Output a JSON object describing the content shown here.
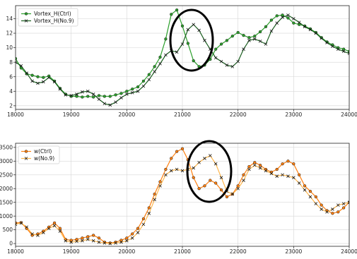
{
  "chart_data": [
    {
      "type": "line",
      "title": "",
      "xlabel": "",
      "ylabel": "",
      "xlim": [
        18000,
        24000
      ],
      "ylim": [
        1.5,
        15.8
      ],
      "xticks": [
        18000,
        19000,
        20000,
        21000,
        22000,
        23000,
        24000
      ],
      "yticks": [
        2,
        4,
        6,
        8,
        10,
        12,
        14
      ],
      "grid": true,
      "legend_position": "top-left",
      "annotation": "ellipse around x 21000-21500",
      "series": [
        {
          "name": "Vortex_H(Ctrl)",
          "color": "#2ca02c",
          "marker": "circle",
          "x": [
            18000,
            18100,
            18200,
            18300,
            18400,
            18500,
            18600,
            18700,
            18800,
            18900,
            19000,
            19100,
            19200,
            19300,
            19400,
            19500,
            19600,
            19700,
            19800,
            19900,
            20000,
            20100,
            20200,
            20300,
            20400,
            20500,
            20600,
            20700,
            20800,
            20900,
            21000,
            21100,
            21200,
            21300,
            21400,
            21500,
            21600,
            21700,
            21800,
            21900,
            22000,
            22100,
            22200,
            22300,
            22400,
            22500,
            22600,
            22700,
            22800,
            22900,
            23000,
            23100,
            23200,
            23300,
            23400,
            23500,
            23600,
            23700,
            23800,
            23900,
            24000
          ],
          "y": [
            8.5,
            7.2,
            6.4,
            6.2,
            6.0,
            5.9,
            6.1,
            5.4,
            4.4,
            3.6,
            3.3,
            3.3,
            3.2,
            3.3,
            3.2,
            3.4,
            3.3,
            3.3,
            3.5,
            3.7,
            4.0,
            4.3,
            4.6,
            5.4,
            6.3,
            7.4,
            8.7,
            11.2,
            14.6,
            15.2,
            13.0,
            10.6,
            8.2,
            7.4,
            7.6,
            8.4,
            9.8,
            10.5,
            11.0,
            11.6,
            12.1,
            11.7,
            11.4,
            11.6,
            12.2,
            12.9,
            13.8,
            14.4,
            14.5,
            14.1,
            13.4,
            13.2,
            13.0,
            12.6,
            12.1,
            11.4,
            10.8,
            10.4,
            10.0,
            9.8,
            9.5
          ]
        },
        {
          "name": "Vortex_H(No.9)",
          "color": "#1b5e20",
          "marker": "cross",
          "x": [
            18000,
            18100,
            18200,
            18300,
            18400,
            18500,
            18600,
            18700,
            18800,
            18900,
            19000,
            19100,
            19200,
            19300,
            19400,
            19500,
            19600,
            19700,
            19800,
            19900,
            20000,
            20100,
            20200,
            20300,
            20400,
            20500,
            20600,
            20700,
            20800,
            20900,
            21000,
            21100,
            21200,
            21300,
            21400,
            21500,
            21600,
            21700,
            21800,
            21900,
            22000,
            22100,
            22200,
            22300,
            22400,
            22500,
            22600,
            22700,
            22800,
            22900,
            23000,
            23100,
            23200,
            23300,
            23400,
            23500,
            23600,
            23700,
            23800,
            23900,
            24000
          ],
          "y": [
            8.0,
            7.5,
            6.5,
            5.4,
            5.1,
            5.3,
            5.9,
            5.3,
            4.3,
            3.5,
            3.4,
            3.6,
            3.9,
            4.0,
            3.6,
            2.9,
            2.3,
            2.1,
            2.5,
            3.1,
            3.6,
            3.8,
            4.0,
            4.7,
            5.6,
            6.7,
            7.8,
            9.0,
            9.6,
            9.4,
            10.5,
            12.5,
            13.2,
            12.4,
            11.0,
            9.8,
            8.6,
            8.1,
            7.6,
            7.4,
            8.1,
            9.8,
            11.0,
            11.2,
            10.9,
            10.5,
            12.3,
            13.4,
            14.2,
            14.5,
            14.0,
            13.5,
            12.9,
            12.5,
            12.0,
            11.3,
            10.7,
            10.2,
            9.8,
            9.5,
            9.2
          ]
        }
      ]
    },
    {
      "type": "line",
      "title": "",
      "xlabel": "",
      "ylabel": "",
      "xlim": [
        18000,
        24000
      ],
      "ylim": [
        -100,
        3650
      ],
      "xticks": [
        18000,
        19000,
        20000,
        21000,
        22000,
        23000,
        24000
      ],
      "yticks": [
        0,
        500,
        1000,
        1500,
        2000,
        2500,
        3000,
        3500
      ],
      "ytick_labels": [
        "0",
        "500",
        "1000",
        "1500",
        "2000",
        "2500",
        "3000",
        "3500"
      ],
      "grid": true,
      "legend_position": "top-left",
      "annotation": "ellipse around x 21300-21900",
      "series": [
        {
          "name": "w(Ctrl)",
          "color": "#ff7f0e",
          "marker": "circle",
          "x": [
            18000,
            18100,
            18200,
            18300,
            18400,
            18500,
            18600,
            18700,
            18800,
            18900,
            19000,
            19100,
            19200,
            19300,
            19400,
            19500,
            19600,
            19700,
            19800,
            19900,
            20000,
            20100,
            20200,
            20300,
            20400,
            20500,
            20600,
            20700,
            20800,
            20900,
            21000,
            21100,
            21200,
            21300,
            21400,
            21500,
            21600,
            21700,
            21800,
            21900,
            22000,
            22100,
            22200,
            22300,
            22400,
            22500,
            22600,
            22700,
            22800,
            22900,
            23000,
            23100,
            23200,
            23300,
            23400,
            23500,
            23600,
            23700,
            23800,
            23900,
            24000
          ],
          "y": [
            750,
            760,
            550,
            300,
            350,
            450,
            600,
            750,
            550,
            150,
            120,
            150,
            200,
            250,
            300,
            200,
            50,
            20,
            50,
            120,
            200,
            350,
            550,
            900,
            1300,
            1800,
            2250,
            2700,
            3100,
            3350,
            3450,
            3050,
            2400,
            2000,
            2100,
            2300,
            2200,
            1950,
            1700,
            1800,
            2100,
            2500,
            2800,
            2950,
            2850,
            2700,
            2600,
            2700,
            2900,
            3000,
            2900,
            2500,
            2100,
            1900,
            1700,
            1400,
            1200,
            1100,
            1150,
            1300,
            1500
          ]
        },
        {
          "name": "w(No.9)",
          "color": "#ffb74d",
          "marker": "cross",
          "x": [
            18000,
            18100,
            18200,
            18300,
            18400,
            18500,
            18600,
            18700,
            18800,
            18900,
            19000,
            19100,
            19200,
            19300,
            19400,
            19500,
            19600,
            19700,
            19800,
            19900,
            20000,
            20100,
            20200,
            20300,
            20400,
            20500,
            20600,
            20700,
            20800,
            20900,
            21000,
            21100,
            21200,
            21300,
            21400,
            21500,
            21600,
            21700,
            21800,
            21900,
            22000,
            22100,
            22200,
            22300,
            22400,
            22500,
            22600,
            22700,
            22800,
            22900,
            23000,
            23100,
            23200,
            23300,
            23400,
            23500,
            23600,
            23700,
            23800,
            23900,
            24000
          ],
          "y": [
            700,
            750,
            600,
            350,
            300,
            400,
            550,
            650,
            450,
            100,
            50,
            80,
            100,
            150,
            100,
            50,
            20,
            0,
            20,
            50,
            100,
            200,
            400,
            700,
            1100,
            1600,
            2100,
            2500,
            2650,
            2700,
            2650,
            2700,
            2750,
            2950,
            3100,
            3200,
            2900,
            2400,
            1900,
            1800,
            2000,
            2300,
            2700,
            2850,
            2750,
            2650,
            2550,
            2450,
            2500,
            2450,
            2400,
            2200,
            1950,
            1700,
            1450,
            1250,
            1150,
            1250,
            1400,
            1450,
            1500
          ]
        }
      ]
    }
  ]
}
